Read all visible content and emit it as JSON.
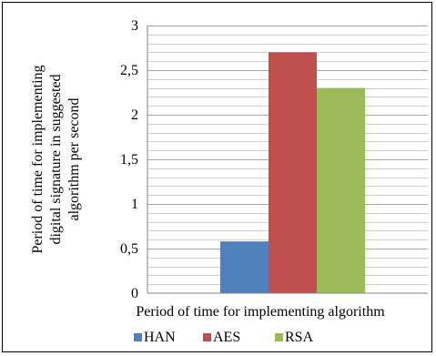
{
  "chart_data": {
    "type": "bar",
    "categories": [
      ""
    ],
    "series": [
      {
        "name": "HAN",
        "values": [
          0.58
        ],
        "color": "#4f81bd"
      },
      {
        "name": "AES",
        "values": [
          2.7
        ],
        "color": "#c0504d"
      },
      {
        "name": "RSA",
        "values": [
          2.3
        ],
        "color": "#9bbb59"
      }
    ],
    "xlabel": "Period of time for implementing algorithm",
    "ylabel": "Period of time for implementing digital signature in suggested algorithm per second",
    "ylabel_lines": [
      "Period of time for implementing",
      "digital signature in suggested",
      "algorithm per second"
    ],
    "ylim": [
      0,
      3
    ],
    "yticks": [
      0,
      0.5,
      1,
      1.5,
      2,
      2.5,
      3
    ],
    "ytick_labels": [
      "0",
      "0,5",
      "1",
      "1,5",
      "2",
      "2,5",
      "3"
    ],
    "minor_grid_step": 0.1,
    "grid": true,
    "legend": "bottom"
  }
}
